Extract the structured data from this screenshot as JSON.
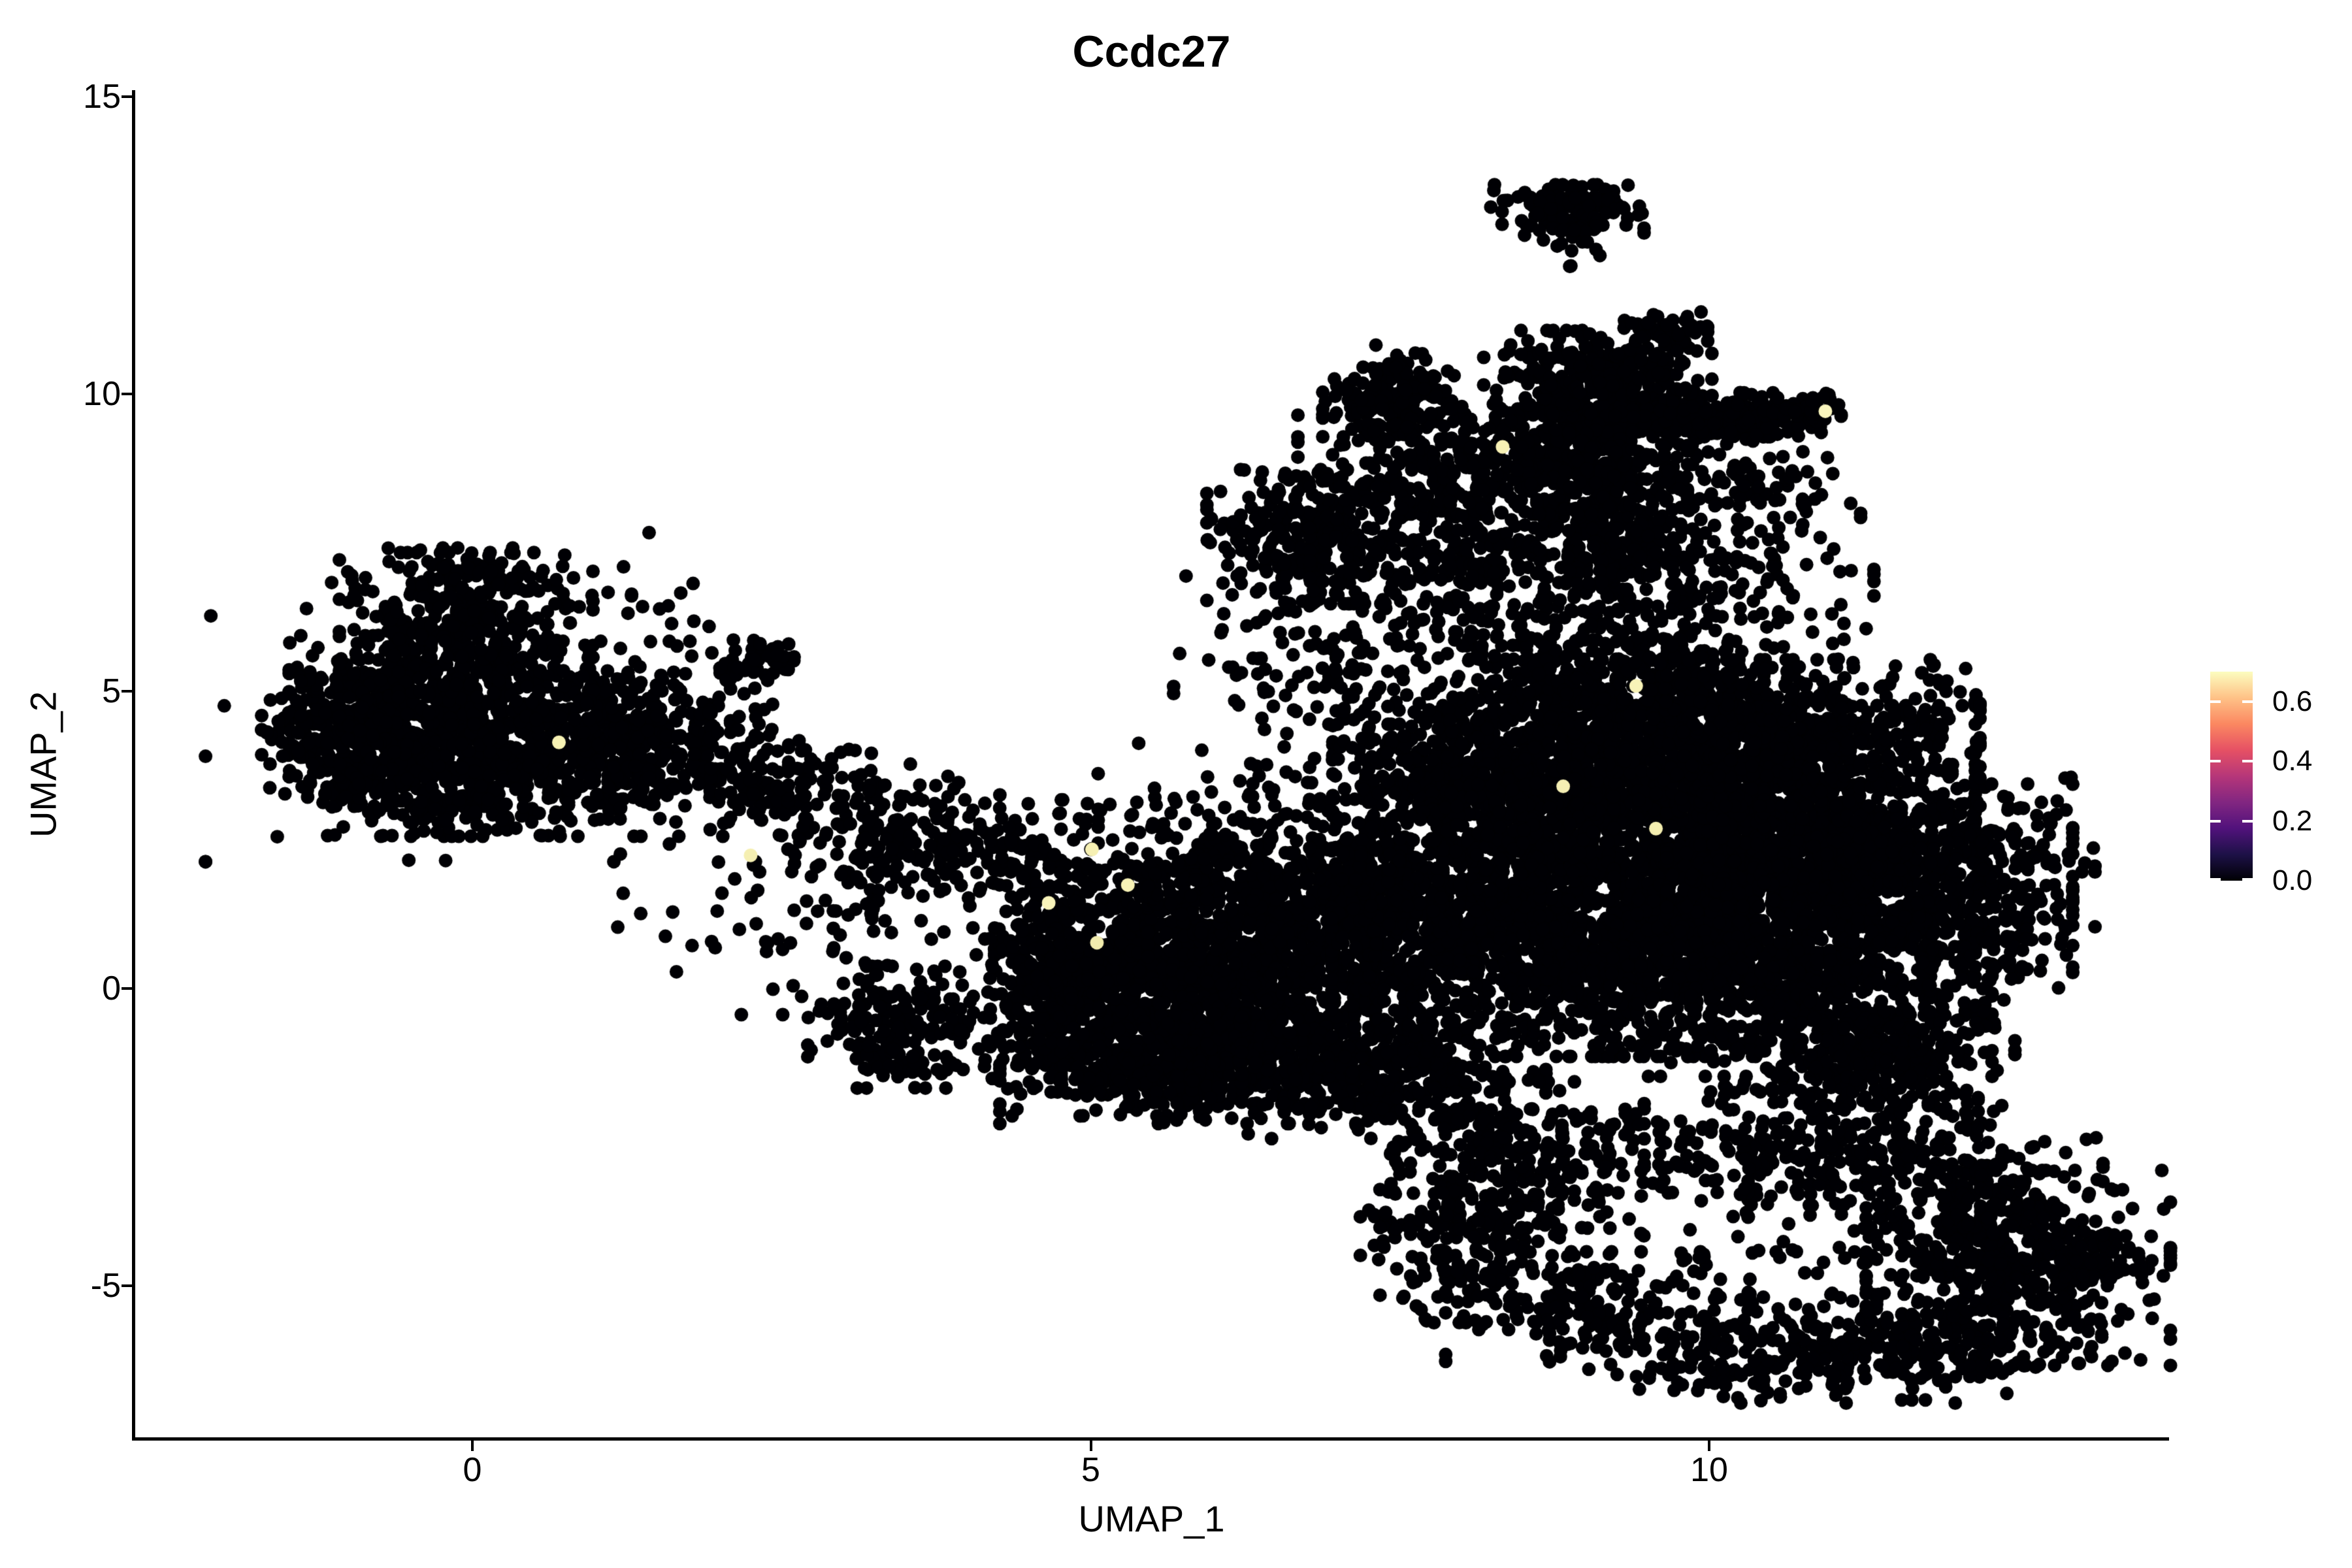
{
  "figure": {
    "title": "Ccdc27"
  },
  "chart_data": {
    "type": "scatter",
    "title": "Ccdc27",
    "subtitle": "",
    "xlabel": "UMAP_1",
    "ylabel": "UMAP_2",
    "x_ticks": [
      0,
      5,
      10
    ],
    "y_ticks": [
      15,
      10,
      5,
      0,
      -5
    ],
    "xlim": [
      -2.74,
      13.7
    ],
    "ylim": [
      -7.6,
      15.1
    ],
    "grid": false,
    "background": "#ffffff",
    "axis_color": "#000000",
    "point_color_low": "#000004",
    "point_radius_px": 10.5,
    "n_points_approx": 17300,
    "legend": {
      "position": "right",
      "orientation": "vertical",
      "breaks": [
        "0.6",
        "0.4",
        "0.2",
        "0.0"
      ],
      "break_values": [
        0.6,
        0.4,
        0.2,
        0.0
      ],
      "range": [
        0.0,
        0.7
      ],
      "palette": "magma",
      "gradient": [
        "#000004",
        "#1D1147",
        "#51127C",
        "#822681",
        "#B63679",
        "#E65164",
        "#FB8861",
        "#FEC287",
        "#FCFDBF"
      ],
      "tick_color": "#FFFFFF"
    },
    "clusters": [
      {
        "id": "left-core",
        "cx": -0.62,
        "cy": 4.5,
        "sx": 0.42,
        "sy": 0.7,
        "n": 380
      },
      {
        "id": "left-upper-lobe",
        "cx": -0.05,
        "cy": 6.0,
        "sx": 0.5,
        "sy": 0.65,
        "n": 340
      },
      {
        "id": "left-mid",
        "cx": 0.55,
        "cy": 4.2,
        "sx": 0.75,
        "sy": 0.8,
        "n": 520
      },
      {
        "id": "left-bottom",
        "cx": -0.35,
        "cy": 3.35,
        "sx": 0.55,
        "sy": 0.38,
        "n": 180
      },
      {
        "id": "left-tip",
        "cx": -1.15,
        "cy": 4.3,
        "sx": 0.27,
        "sy": 0.5,
        "n": 160
      },
      {
        "id": "left-right-tail",
        "cx": 1.3,
        "cy": 4.4,
        "sx": 0.55,
        "sy": 0.45,
        "n": 210
      },
      {
        "id": "left-halo",
        "cx": 0.2,
        "cy": 4.9,
        "sx": 1.15,
        "sy": 1.35,
        "n": 130
      },
      {
        "id": "left-satellite",
        "cx": 2.33,
        "cy": 5.55,
        "sx": 0.16,
        "sy": 0.2,
        "n": 40
      },
      {
        "id": "left-upper-dots",
        "cx": 1.3,
        "cy": 6.3,
        "sx": 0.25,
        "sy": 0.25,
        "n": 10
      },
      {
        "id": "left-top-fringe",
        "cx": 0.1,
        "cy": 7.0,
        "sx": 0.35,
        "sy": 0.2,
        "n": 40
      },
      {
        "id": "bridge-band",
        "cx": 2.2,
        "cy": 3.5,
        "sx": 0.8,
        "sy": 0.38,
        "n": 210,
        "rot": -20
      },
      {
        "id": "bridge-mid",
        "cx": 3.4,
        "cy": 2.6,
        "sx": 0.55,
        "sy": 0.4,
        "n": 120
      },
      {
        "id": "bridge-right",
        "cx": 4.3,
        "cy": 2.25,
        "sx": 0.5,
        "sy": 0.45,
        "n": 140
      },
      {
        "id": "bridge-low-clump",
        "cx": 3.45,
        "cy": -0.65,
        "sx": 0.36,
        "sy": 0.5,
        "n": 190
      },
      {
        "id": "bridge-sparse-a",
        "cx": 2.0,
        "cy": 1.2,
        "sx": 0.6,
        "sy": 0.6,
        "n": 25
      },
      {
        "id": "bridge-sparse-b",
        "cx": 3.2,
        "cy": 1.2,
        "sx": 0.5,
        "sy": 0.8,
        "n": 60
      },
      {
        "id": "central-a",
        "cx": 5.35,
        "cy": 0.35,
        "sx": 0.55,
        "sy": 0.8,
        "n": 520
      },
      {
        "id": "central-b",
        "cx": 6.4,
        "cy": -0.3,
        "sx": 0.8,
        "sy": 0.8,
        "n": 780
      },
      {
        "id": "central-bottom",
        "cx": 5.7,
        "cy": -1.35,
        "sx": 0.7,
        "sy": 0.45,
        "n": 450
      },
      {
        "id": "central-upper-right",
        "cx": 7.0,
        "cy": 1.3,
        "sx": 0.75,
        "sy": 0.6,
        "n": 430
      },
      {
        "id": "central-top",
        "cx": 6.1,
        "cy": 1.85,
        "sx": 0.7,
        "sy": 0.45,
        "n": 280
      },
      {
        "id": "central-br-tail",
        "cx": 7.45,
        "cy": -1.5,
        "sx": 0.6,
        "sy": 0.5,
        "n": 280
      },
      {
        "id": "central-left-wedge",
        "cx": 4.62,
        "cy": 0.0,
        "sx": 0.22,
        "sy": 0.85,
        "n": 210
      },
      {
        "id": "central-top-sparse",
        "cx": 6.7,
        "cy": 3.1,
        "sx": 0.8,
        "sy": 0.5,
        "n": 100
      },
      {
        "id": "central-down-trail",
        "cx": 8.0,
        "cy": -3.7,
        "sx": 0.4,
        "sy": 0.8,
        "n": 100
      },
      {
        "id": "right-core",
        "cx": 10.0,
        "cy": 2.4,
        "sx": 1.05,
        "sy": 1.15,
        "n": 1900
      },
      {
        "id": "right-lower-left",
        "cx": 9.0,
        "cy": 0.6,
        "sx": 1.0,
        "sy": 0.85,
        "n": 1100
      },
      {
        "id": "right-east",
        "cx": 11.3,
        "cy": 1.6,
        "sx": 0.8,
        "sy": 1.0,
        "n": 850
      },
      {
        "id": "right-upper-left",
        "cx": 8.7,
        "cy": 4.0,
        "sx": 0.85,
        "sy": 0.75,
        "n": 750
      },
      {
        "id": "right-upper-right",
        "cx": 10.55,
        "cy": 4.3,
        "sx": 0.8,
        "sy": 0.6,
        "n": 550
      },
      {
        "id": "right-lower-lobe",
        "cx": 10.75,
        "cy": -0.35,
        "sx": 0.75,
        "sy": 0.55,
        "n": 420
      },
      {
        "id": "right-west",
        "cx": 8.0,
        "cy": 2.6,
        "sx": 0.6,
        "sy": 0.9,
        "n": 480
      },
      {
        "id": "right-top",
        "cx": 9.45,
        "cy": 5.4,
        "sx": 0.8,
        "sy": 0.5,
        "n": 330
      },
      {
        "id": "right-east-fringe",
        "cx": 12.3,
        "cy": 1.8,
        "sx": 0.4,
        "sy": 0.8,
        "n": 90
      },
      {
        "id": "right-se-horn",
        "cx": 11.55,
        "cy": -1.1,
        "sx": 0.45,
        "sy": 0.35,
        "n": 130
      },
      {
        "id": "upper-clump",
        "cx": 7.45,
        "cy": 9.9,
        "sx": 0.28,
        "sy": 0.45,
        "n": 190
      },
      {
        "id": "upper-left-blob",
        "cx": 6.8,
        "cy": 7.6,
        "sx": 0.42,
        "sy": 0.55,
        "n": 270
      },
      {
        "id": "upper-mid",
        "cx": 8.0,
        "cy": 7.3,
        "sx": 0.6,
        "sy": 0.75,
        "n": 340
      },
      {
        "id": "upper-right-band",
        "cx": 9.25,
        "cy": 7.5,
        "sx": 0.3,
        "sy": 0.7,
        "n": 220
      },
      {
        "id": "upper-saddle-sparse",
        "cx": 6.9,
        "cy": 5.4,
        "sx": 0.6,
        "sy": 0.75,
        "n": 130
      },
      {
        "id": "upper-between",
        "cx": 7.7,
        "cy": 8.7,
        "sx": 0.5,
        "sy": 0.5,
        "n": 120
      },
      {
        "id": "upper-east-sparse",
        "cx": 10.0,
        "cy": 7.0,
        "sx": 0.65,
        "sy": 0.6,
        "n": 140
      },
      {
        "id": "upper-east-mid",
        "cx": 10.2,
        "cy": 8.5,
        "sx": 0.5,
        "sy": 0.45,
        "n": 100
      },
      {
        "id": "topright-band-w",
        "cx": 9.4,
        "cy": 9.6,
        "sx": 0.55,
        "sy": 0.22,
        "n": 260
      },
      {
        "id": "topright-band-e",
        "cx": 10.35,
        "cy": 9.65,
        "sx": 0.35,
        "sy": 0.18,
        "n": 140
      },
      {
        "id": "topright-tip",
        "cx": 10.8,
        "cy": 9.7,
        "sx": 0.12,
        "sy": 0.12,
        "n": 30
      },
      {
        "id": "topright-upper",
        "cx": 9.1,
        "cy": 10.35,
        "sx": 0.45,
        "sy": 0.35,
        "n": 250
      },
      {
        "id": "topright-arm",
        "cx": 9.64,
        "cy": 11.05,
        "sx": 0.17,
        "sy": 0.16,
        "n": 55
      },
      {
        "id": "topright-lower",
        "cx": 8.8,
        "cy": 8.9,
        "sx": 0.5,
        "sy": 0.45,
        "n": 280
      },
      {
        "id": "top-clump",
        "cx": 8.85,
        "cy": 13.15,
        "sx": 0.3,
        "sy": 0.18,
        "n": 105
      },
      {
        "id": "top-clump-lower",
        "cx": 8.9,
        "cy": 12.7,
        "sx": 0.28,
        "sy": 0.2,
        "n": 40
      },
      {
        "id": "top-stray",
        "cx": 8.8,
        "cy": 12.1,
        "sx": 0.04,
        "sy": 0.04,
        "n": 2
      },
      {
        "id": "ring-nw",
        "cx": 8.45,
        "cy": -2.8,
        "sx": 0.5,
        "sy": 0.6,
        "n": 220
      },
      {
        "id": "ring-w",
        "cx": 8.2,
        "cy": -4.2,
        "sx": 0.42,
        "sy": 0.75,
        "n": 140
      },
      {
        "id": "ring-sw",
        "cx": 9.1,
        "cy": -5.35,
        "sx": 0.6,
        "sy": 0.45,
        "n": 170
      },
      {
        "id": "ring-s",
        "cx": 10.35,
        "cy": -6.05,
        "sx": 0.8,
        "sy": 0.45,
        "n": 210
      },
      {
        "id": "ring-se",
        "cx": 11.55,
        "cy": -6.1,
        "sx": 0.7,
        "sy": 0.4,
        "n": 190
      },
      {
        "id": "ring-e-mass",
        "cx": 12.5,
        "cy": -4.7,
        "sx": 0.6,
        "sy": 0.8,
        "n": 520
      },
      {
        "id": "ring-e-tip",
        "cx": 13.1,
        "cy": -4.6,
        "sx": 0.2,
        "sy": 0.25,
        "n": 60
      },
      {
        "id": "ring-ne",
        "cx": 11.75,
        "cy": -3.2,
        "sx": 0.7,
        "sy": 0.6,
        "n": 250
      },
      {
        "id": "ring-n",
        "cx": 10.45,
        "cy": -2.6,
        "sx": 0.8,
        "sy": 0.42,
        "n": 190
      },
      {
        "id": "ring-interior",
        "cx": 10.35,
        "cy": -4.2,
        "sx": 0.95,
        "sy": 0.75,
        "n": 60
      },
      {
        "id": "ring-neck",
        "cx": 11.15,
        "cy": -1.5,
        "sx": 0.5,
        "sy": 0.45,
        "n": 140
      }
    ],
    "highlight_points": [
      {
        "x": 0.7,
        "y": 4.14,
        "value": 0.65,
        "color": "#f7f2b4"
      },
      {
        "x": 2.25,
        "y": 2.24,
        "value": 0.63,
        "color": "#f5efb2"
      },
      {
        "x": 4.66,
        "y": 1.44,
        "value": 0.66,
        "color": "#f9f4bb"
      },
      {
        "x": 5.05,
        "y": 0.77,
        "value": 0.62,
        "color": "#f2ecae"
      },
      {
        "x": 5.3,
        "y": 1.74,
        "value": 0.65,
        "color": "#f7f2b6"
      },
      {
        "x": 5.01,
        "y": 2.34,
        "value": 0.64,
        "color": "#f6f0b3"
      },
      {
        "x": 8.82,
        "y": 3.4,
        "value": 0.64,
        "color": "#f5efb4"
      },
      {
        "x": 9.41,
        "y": 5.09,
        "value": 0.66,
        "color": "#f8f3b8"
      },
      {
        "x": 9.57,
        "y": 2.69,
        "value": 0.63,
        "color": "#f4eeb0"
      },
      {
        "x": 8.33,
        "y": 9.11,
        "value": 0.65,
        "color": "#f7f1b5"
      },
      {
        "x": 10.94,
        "y": 9.71,
        "value": 0.7,
        "color": "#faf6be"
      }
    ]
  }
}
